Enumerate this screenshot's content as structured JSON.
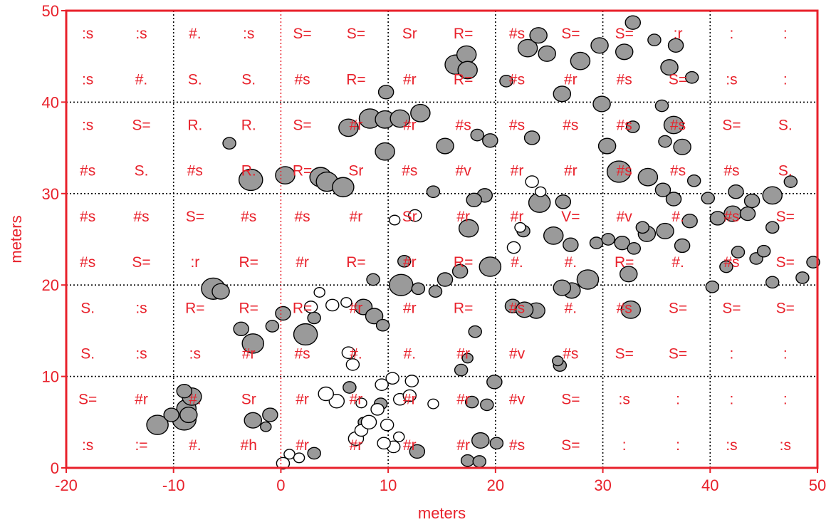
{
  "chart_data": {
    "type": "scatter",
    "title": "",
    "xlabel": "meters",
    "ylabel": "meters",
    "xlim": [
      -20,
      50
    ],
    "ylim": [
      0,
      50
    ],
    "x_ticks": [
      "-20",
      "-10",
      "0",
      "10",
      "20",
      "30",
      "40",
      "50"
    ],
    "y_ticks": [
      "0",
      "10",
      "20",
      "30",
      "40",
      "50"
    ],
    "grid": "dotted, every 10 m",
    "colors": {
      "axis": "#e8212b",
      "grid": "#000000",
      "bubble_dark": "#9a9a9a",
      "bubble_light": "#ffffff",
      "bubble_stroke": "#000000"
    },
    "cell_label_columns_x": [
      -18,
      -13,
      -8,
      -3,
      2,
      7,
      12,
      17,
      22,
      27,
      32,
      37,
      42,
      47
    ],
    "cell_label_rows": [
      {
        "y": 47.5,
        "labels": [
          ":s",
          ":s",
          "#.",
          ":s",
          "S=",
          "S=",
          "Sr",
          "R=",
          "#s",
          "S=",
          "S=",
          ":r",
          ":",
          ":"
        ]
      },
      {
        "y": 42.5,
        "labels": [
          ":s",
          "#.",
          "S.",
          "S.",
          "#s",
          "R=",
          "#r",
          "R=",
          "#s",
          "#r",
          "#s",
          "S=",
          ":s",
          ":"
        ]
      },
      {
        "y": 37.5,
        "labels": [
          ":s",
          "S=",
          "R.",
          "R.",
          "S=",
          "#r",
          "#r",
          "#s",
          "#s",
          "#s",
          "#s",
          "#s",
          "S=",
          "S."
        ]
      },
      {
        "y": 32.5,
        "labels": [
          "#s",
          "S.",
          "#s",
          "R.",
          "R=",
          "Sr",
          "#s",
          "#v",
          "#r",
          "#r",
          "#s",
          "#s",
          "#s",
          "S."
        ]
      },
      {
        "y": 27.5,
        "labels": [
          "#s",
          "#s",
          "S=",
          "#s",
          "#s",
          "#r",
          "Sr",
          "#r",
          "#r",
          "V=",
          "#v",
          "#.",
          "#s",
          "S="
        ]
      },
      {
        "y": 22.5,
        "labels": [
          "#s",
          "S=",
          ":r",
          "R=",
          "#r",
          "R=",
          "#r",
          "R=",
          "#.",
          "#.",
          "R=",
          "#.",
          "#s",
          "S="
        ]
      },
      {
        "y": 17.5,
        "labels": [
          "S.",
          ":s",
          "R=",
          "R=",
          "R=",
          "#r",
          "#r",
          "R=",
          "#s",
          "#.",
          "#s",
          "S=",
          "S=",
          "S="
        ]
      },
      {
        "y": 12.5,
        "labels": [
          "S.",
          ":s",
          ":s",
          "#r",
          "#s",
          "#.",
          "#.",
          "#r",
          "#v",
          "#s",
          "S=",
          "S=",
          ":",
          ":"
        ]
      },
      {
        "y": 7.5,
        "labels": [
          "S=",
          "#r",
          "#.",
          "Sr",
          "#r",
          "#r",
          "#r",
          "#r",
          "#v",
          "S=",
          ":s",
          ":",
          ":",
          ":"
        ]
      },
      {
        "y": 2.5,
        "labels": [
          ":s",
          ":=",
          "#.",
          "#h",
          "#r",
          "#r",
          "#r",
          "#r",
          "#s",
          "S=",
          ":",
          ":",
          ":s",
          ":s"
        ]
      }
    ],
    "series": [
      {
        "name": "",
        "fill": "dark",
        "points": [
          [
            -11.5,
            4.7,
            1.0
          ],
          [
            -9.0,
            5.3,
            1.1
          ],
          [
            -8.8,
            6.5,
            0.9
          ],
          [
            -8.3,
            7.8,
            0.9
          ],
          [
            -9.0,
            8.4,
            0.7
          ],
          [
            -10.2,
            5.8,
            0.7
          ],
          [
            -8.6,
            5.8,
            0.8
          ],
          [
            -6.3,
            19.6,
            1.1
          ],
          [
            -5.6,
            19.3,
            0.8
          ],
          [
            -3.7,
            15.2,
            0.7
          ],
          [
            -2.6,
            13.6,
            1.0
          ],
          [
            -0.8,
            15.5,
            0.6
          ],
          [
            -2.6,
            5.2,
            0.8
          ],
          [
            -1.0,
            5.8,
            0.7
          ],
          [
            -1.4,
            4.5,
            0.5
          ],
          [
            0.2,
            16.9,
            0.7
          ],
          [
            2.3,
            14.6,
            1.1
          ],
          [
            3.1,
            16.4,
            0.6
          ],
          [
            -4.8,
            35.5,
            0.6
          ],
          [
            -2.8,
            31.5,
            1.1
          ],
          [
            0.4,
            32.0,
            0.9
          ],
          [
            3.7,
            31.8,
            1.0
          ],
          [
            4.3,
            31.3,
            1.0
          ],
          [
            5.8,
            30.7,
            1.0
          ],
          [
            8.3,
            38.2,
            1.0
          ],
          [
            6.3,
            37.2,
            0.9
          ],
          [
            9.7,
            38.1,
            0.9
          ],
          [
            9.7,
            34.6,
            0.9
          ],
          [
            11.1,
            38.2,
            0.9
          ],
          [
            13.0,
            38.8,
            0.9
          ],
          [
            15.3,
            35.2,
            0.8
          ],
          [
            9.8,
            41.1,
            0.7
          ],
          [
            16.3,
            44.1,
            1.0
          ],
          [
            17.3,
            45.2,
            0.9
          ],
          [
            17.4,
            43.5,
            0.9
          ],
          [
            18.3,
            36.4,
            0.6
          ],
          [
            19.5,
            35.8,
            0.7
          ],
          [
            21.0,
            42.3,
            0.6
          ],
          [
            23.4,
            36.1,
            0.7
          ],
          [
            23.0,
            45.9,
            0.9
          ],
          [
            24.0,
            47.3,
            0.8
          ],
          [
            24.8,
            45.3,
            0.8
          ],
          [
            26.2,
            40.9,
            0.8
          ],
          [
            27.9,
            44.5,
            0.9
          ],
          [
            29.7,
            46.2,
            0.8
          ],
          [
            29.9,
            39.8,
            0.8
          ],
          [
            32.0,
            45.5,
            0.8
          ],
          [
            32.8,
            48.7,
            0.7
          ],
          [
            34.8,
            46.8,
            0.6
          ],
          [
            35.5,
            39.6,
            0.6
          ],
          [
            36.8,
            46.2,
            0.7
          ],
          [
            36.2,
            43.8,
            0.8
          ],
          [
            38.3,
            42.7,
            0.6
          ],
          [
            30.4,
            35.2,
            0.8
          ],
          [
            32.8,
            37.3,
            0.6
          ],
          [
            36.6,
            37.5,
            0.9
          ],
          [
            35.8,
            35.7,
            0.6
          ],
          [
            37.4,
            35.1,
            0.8
          ],
          [
            31.5,
            32.4,
            1.1
          ],
          [
            34.2,
            31.8,
            0.9
          ],
          [
            36.6,
            29.4,
            0.7
          ],
          [
            35.6,
            30.4,
            0.7
          ],
          [
            38.5,
            31.4,
            0.6
          ],
          [
            26.3,
            29.1,
            0.7
          ],
          [
            24.1,
            29.0,
            1.0
          ],
          [
            25.4,
            25.4,
            0.9
          ],
          [
            27.0,
            24.4,
            0.7
          ],
          [
            22.6,
            25.9,
            0.6
          ],
          [
            19.0,
            29.8,
            0.7
          ],
          [
            18.0,
            29.3,
            0.7
          ],
          [
            17.5,
            26.2,
            0.9
          ],
          [
            14.2,
            30.2,
            0.6
          ],
          [
            16.7,
            21.5,
            0.7
          ],
          [
            15.3,
            20.6,
            0.7
          ],
          [
            11.2,
            20.0,
            1.1
          ],
          [
            11.5,
            22.6,
            0.6
          ],
          [
            12.8,
            19.6,
            0.6
          ],
          [
            14.4,
            19.3,
            0.6
          ],
          [
            19.5,
            22.0,
            1.0
          ],
          [
            8.6,
            20.6,
            0.6
          ],
          [
            7.7,
            17.6,
            0.8
          ],
          [
            8.7,
            16.6,
            0.8
          ],
          [
            9.5,
            15.6,
            0.6
          ],
          [
            28.6,
            20.6,
            1.0
          ],
          [
            27.1,
            19.4,
            0.8
          ],
          [
            26.2,
            19.7,
            0.8
          ],
          [
            23.8,
            17.2,
            0.8
          ],
          [
            21.6,
            17.7,
            0.7
          ],
          [
            22.7,
            17.3,
            0.8
          ],
          [
            32.6,
            17.3,
            0.9
          ],
          [
            32.4,
            21.2,
            0.8
          ],
          [
            40.2,
            19.8,
            0.6
          ],
          [
            41.5,
            22.0,
            0.6
          ],
          [
            45.8,
            20.3,
            0.6
          ],
          [
            48.6,
            20.8,
            0.6
          ],
          [
            49.6,
            22.5,
            0.6
          ],
          [
            42.6,
            23.6,
            0.6
          ],
          [
            44.3,
            22.9,
            0.6
          ],
          [
            45.0,
            23.7,
            0.6
          ],
          [
            40.7,
            27.3,
            0.7
          ],
          [
            42.1,
            27.8,
            0.8
          ],
          [
            43.5,
            27.8,
            0.7
          ],
          [
            45.8,
            29.8,
            0.9
          ],
          [
            47.5,
            31.3,
            0.6
          ],
          [
            45.8,
            26.3,
            0.6
          ],
          [
            42.4,
            30.2,
            0.7
          ],
          [
            43.9,
            29.2,
            0.7
          ],
          [
            39.8,
            29.5,
            0.6
          ],
          [
            34.1,
            25.6,
            0.8
          ],
          [
            35.8,
            25.9,
            0.8
          ],
          [
            37.4,
            24.3,
            0.7
          ],
          [
            38.1,
            27.0,
            0.7
          ],
          [
            31.8,
            24.6,
            0.7
          ],
          [
            32.9,
            24.0,
            0.6
          ],
          [
            29.4,
            24.6,
            0.6
          ],
          [
            30.5,
            25.0,
            0.6
          ],
          [
            33.7,
            26.3,
            0.6
          ],
          [
            6.4,
            8.8,
            0.6
          ],
          [
            7.7,
            5.0,
            0.5
          ],
          [
            9.3,
            7.0,
            0.6
          ],
          [
            12.7,
            1.8,
            0.7
          ],
          [
            3.1,
            1.6,
            0.6
          ],
          [
            17.4,
            0.8,
            0.6
          ],
          [
            18.5,
            0.7,
            0.6
          ],
          [
            18.6,
            3.0,
            0.8
          ],
          [
            20.1,
            2.7,
            0.6
          ],
          [
            19.9,
            9.4,
            0.7
          ],
          [
            19.2,
            6.9,
            0.6
          ],
          [
            17.8,
            7.2,
            0.6
          ],
          [
            16.8,
            10.7,
            0.6
          ],
          [
            18.1,
            14.9,
            0.6
          ],
          [
            17.4,
            12.0,
            0.5
          ],
          [
            26.0,
            11.2,
            0.6
          ],
          [
            25.8,
            11.7,
            0.5
          ]
        ]
      },
      {
        "name": "",
        "fill": "light",
        "points": [
          [
            0.2,
            0.5,
            0.6
          ],
          [
            0.8,
            1.5,
            0.5
          ],
          [
            1.7,
            1.1,
            0.5
          ],
          [
            5.2,
            7.3,
            0.7
          ],
          [
            4.2,
            8.1,
            0.7
          ],
          [
            7.5,
            7.1,
            0.5
          ],
          [
            7.0,
            3.2,
            0.7
          ],
          [
            7.5,
            4.1,
            0.6
          ],
          [
            8.2,
            5.0,
            0.7
          ],
          [
            9.0,
            6.4,
            0.6
          ],
          [
            9.9,
            4.7,
            0.6
          ],
          [
            11.1,
            7.5,
            0.6
          ],
          [
            12.0,
            7.9,
            0.6
          ],
          [
            11.0,
            3.4,
            0.5
          ],
          [
            10.5,
            2.3,
            0.6
          ],
          [
            9.6,
            2.7,
            0.6
          ],
          [
            12.2,
            9.5,
            0.6
          ],
          [
            14.2,
            7.0,
            0.5
          ],
          [
            2.8,
            17.6,
            0.6
          ],
          [
            3.6,
            19.2,
            0.5
          ],
          [
            4.8,
            17.8,
            0.6
          ],
          [
            6.1,
            18.1,
            0.5
          ],
          [
            6.3,
            12.6,
            0.6
          ],
          [
            6.7,
            11.3,
            0.6
          ],
          [
            10.4,
            9.8,
            0.6
          ],
          [
            9.4,
            9.1,
            0.6
          ],
          [
            12.5,
            27.6,
            0.6
          ],
          [
            10.6,
            27.1,
            0.5
          ],
          [
            21.7,
            24.1,
            0.6
          ],
          [
            22.3,
            26.3,
            0.5
          ],
          [
            23.4,
            31.3,
            0.6
          ],
          [
            24.2,
            30.2,
            0.5
          ]
        ]
      }
    ]
  }
}
